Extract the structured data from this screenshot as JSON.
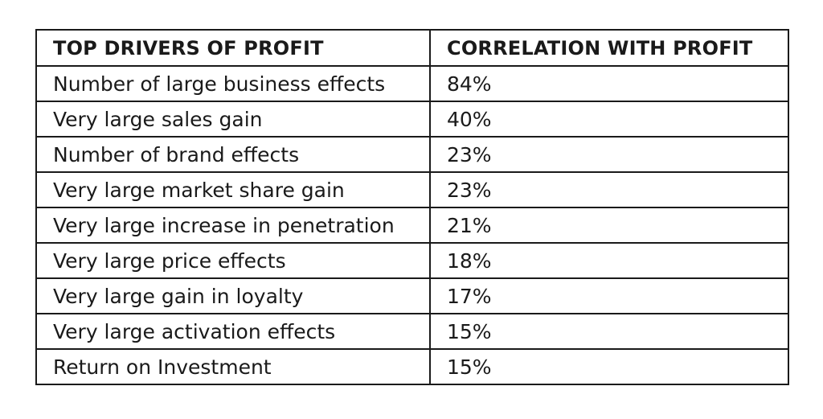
{
  "chart_data": {
    "type": "table",
    "columns": [
      "TOP DRIVERS OF PROFIT",
      "CORRELATION WITH PROFIT"
    ],
    "rows": [
      {
        "driver": "Number of large business effects",
        "correlation": "84%",
        "value": 84
      },
      {
        "driver": "Very large sales gain",
        "correlation": "40%",
        "value": 40
      },
      {
        "driver": "Number of brand effects",
        "correlation": "23%",
        "value": 23
      },
      {
        "driver": "Very large market share gain",
        "correlation": "23%",
        "value": 23
      },
      {
        "driver": "Very large increase in penetration",
        "correlation": "21%",
        "value": 21
      },
      {
        "driver": "Very large price effects",
        "correlation": "18%",
        "value": 18
      },
      {
        "driver": "Very large gain in loyalty",
        "correlation": "17%",
        "value": 17
      },
      {
        "driver": "Very large activation effects",
        "correlation": "15%",
        "value": 15
      },
      {
        "driver": "Return on Investment",
        "correlation": "15%",
        "value": 15
      }
    ]
  }
}
